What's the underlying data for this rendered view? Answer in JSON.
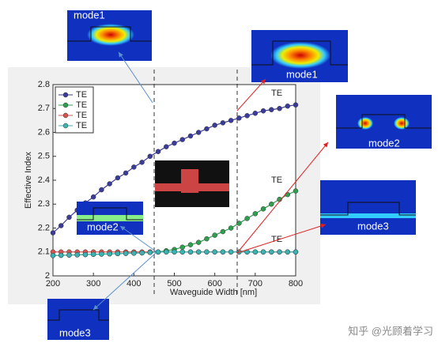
{
  "chart_data": {
    "type": "line",
    "xlabel": "Waveguide Width [nm]",
    "ylabel": "Effective Index",
    "x": [
      200,
      220,
      240,
      260,
      280,
      300,
      320,
      340,
      360,
      380,
      400,
      420,
      440,
      460,
      480,
      500,
      520,
      540,
      560,
      580,
      600,
      620,
      640,
      660,
      680,
      700,
      720,
      740,
      760,
      780,
      800
    ],
    "series": [
      {
        "name": "TE",
        "color": "#3b3b9b",
        "values": [
          2.18,
          2.21,
          2.245,
          2.275,
          2.305,
          2.33,
          2.36,
          2.385,
          2.41,
          2.43,
          2.455,
          2.475,
          2.5,
          2.52,
          2.54,
          2.555,
          2.57,
          2.585,
          2.6,
          2.615,
          2.63,
          2.64,
          2.65,
          2.66,
          2.67,
          2.68,
          2.69,
          2.695,
          2.7,
          2.71,
          2.715
        ]
      },
      {
        "name": "TE",
        "color": "#2e9e4f",
        "values": [
          2.085,
          2.086,
          2.087,
          2.088,
          2.089,
          2.09,
          2.091,
          2.092,
          2.093,
          2.094,
          2.095,
          2.096,
          2.098,
          2.1,
          2.105,
          2.11,
          2.12,
          2.13,
          2.14,
          2.155,
          2.17,
          2.185,
          2.2,
          2.22,
          2.24,
          2.26,
          2.28,
          2.3,
          2.32,
          2.34,
          2.355
        ]
      },
      {
        "name": "TE",
        "color": "#d9534f",
        "values": [
          2.1,
          2.1,
          2.1,
          2.1,
          2.1,
          2.1,
          2.1,
          2.1,
          2.1,
          2.1,
          2.1,
          2.1,
          2.1,
          2.1,
          2.1,
          2.1,
          2.1,
          2.1,
          2.1,
          2.1,
          2.1,
          2.1,
          2.1,
          2.1,
          2.1,
          2.1,
          2.1,
          2.1,
          2.1,
          2.1,
          2.1
        ]
      },
      {
        "name": "TE",
        "color": "#3bb3b3",
        "values": [
          2.085,
          2.086,
          2.087,
          2.088,
          2.089,
          2.09,
          2.091,
          2.092,
          2.093,
          2.094,
          2.095,
          2.096,
          2.098,
          2.1,
          2.1,
          2.1,
          2.1,
          2.1,
          2.1,
          2.1,
          2.1,
          2.1,
          2.1,
          2.1,
          2.1,
          2.1,
          2.1,
          2.1,
          2.1,
          2.1,
          2.1
        ]
      }
    ],
    "xlim": [
      200,
      800
    ],
    "xticks": [
      200,
      300,
      400,
      500,
      600,
      700,
      800
    ],
    "ylim": [
      2,
      2.8
    ],
    "yticks": [
      2,
      2.1,
      2.2,
      2.3,
      2.4,
      2.5,
      2.6,
      2.7,
      2.8
    ],
    "legend": "upper left",
    "annotations": [
      "TE",
      "TE",
      "TE"
    ],
    "mode_labels": [
      "mode1",
      "mode1",
      "mode2",
      "mode2",
      "mode3",
      "mode3"
    ]
  },
  "watermark": "知乎 @光顾着学习"
}
